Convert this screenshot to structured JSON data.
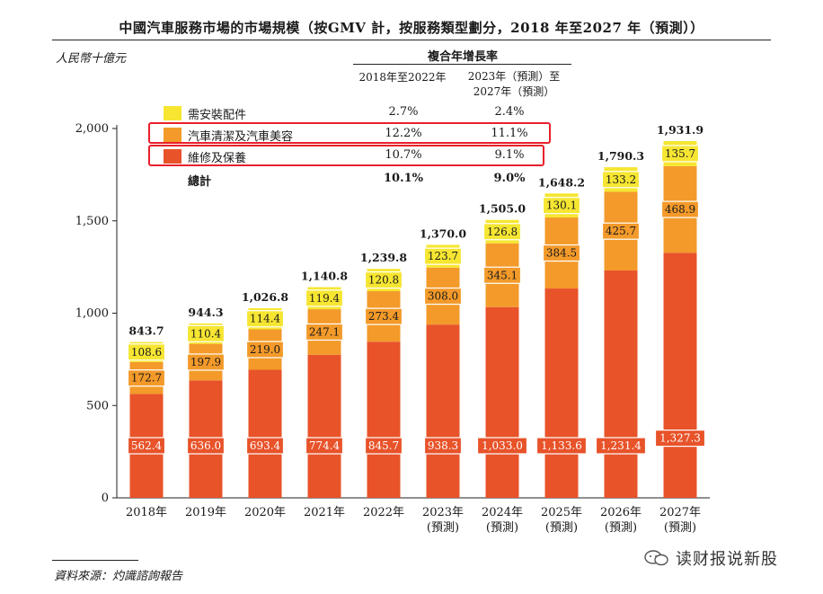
{
  "chart_data": {
    "type": "bar",
    "stacked": true,
    "title": "中國汽車服務市場的市場規模（按GMV 計，按服務類型劃分，2018 年至2027 年（預測））",
    "ylabel": "人民幣十億元",
    "ylim": [
      0,
      2000
    ],
    "yticks": [
      "0",
      "500",
      "1,000",
      "1,500",
      "2,000"
    ],
    "categories": [
      "2018年",
      "2019年",
      "2020年",
      "2021年",
      "2022年",
      "2023年\n(預測)",
      "2024年\n(預測)",
      "2025年\n(預測)",
      "2026年\n(預測)",
      "2027年\n(預測)"
    ],
    "category_labels": [
      {
        "line1": "2018年",
        "line2": ""
      },
      {
        "line1": "2019年",
        "line2": ""
      },
      {
        "line1": "2020年",
        "line2": ""
      },
      {
        "line1": "2021年",
        "line2": ""
      },
      {
        "line1": "2022年",
        "line2": ""
      },
      {
        "line1": "2023年",
        "line2": "(預測)"
      },
      {
        "line1": "2024年",
        "line2": "(預測)"
      },
      {
        "line1": "2025年",
        "line2": "(預測)"
      },
      {
        "line1": "2026年",
        "line2": "(預測)"
      },
      {
        "line1": "2027年",
        "line2": "(預測)"
      }
    ],
    "series": [
      {
        "name": "維修及保養",
        "color": "#e8532a",
        "label_bg": "#e8532a",
        "label_color": "#ffffff",
        "values": [
          562.4,
          636.0,
          693.4,
          774.4,
          845.7,
          938.3,
          1033.0,
          1133.6,
          1231.4,
          1327.3
        ],
        "labels": [
          "562.4",
          "636.0",
          "693.4",
          "774.4",
          "845.7",
          "938.3",
          "1,033.0",
          "1,133.6",
          "1,231.4",
          "1,327.3"
        ]
      },
      {
        "name": "汽車清潔及汽車美容",
        "color": "#f39a2a",
        "label_bg": "#f39a2a",
        "label_color": "#1a1a1a",
        "values": [
          172.7,
          197.9,
          219.0,
          247.1,
          273.4,
          308.0,
          345.1,
          384.5,
          425.7,
          468.9
        ],
        "labels": [
          "172.7",
          "197.9",
          "219.0",
          "247.1",
          "273.4",
          "308.0",
          "345.1",
          "384.5",
          "425.7",
          "468.9"
        ]
      },
      {
        "name": "需安裝配件",
        "color": "#f6e632",
        "label_bg": "#f6e632",
        "label_color": "#1a1a1a",
        "values": [
          108.6,
          110.4,
          114.4,
          119.4,
          120.8,
          123.7,
          126.8,
          130.1,
          133.2,
          135.7
        ],
        "labels": [
          "108.6",
          "110.4",
          "114.4",
          "119.4",
          "120.8",
          "123.7",
          "126.8",
          "130.1",
          "133.2",
          "135.7"
        ]
      }
    ],
    "totals": [
      843.7,
      944.3,
      1026.8,
      1140.8,
      1239.8,
      1370.0,
      1505.0,
      1648.2,
      1790.3,
      1931.9
    ],
    "total_labels": [
      "843.7",
      "944.3",
      "1,026.8",
      "1,140.8",
      "1,239.8",
      "1,370.0",
      "1,505.0",
      "1,648.2",
      "1,790.3",
      "1,931.9"
    ]
  },
  "cagr_table": {
    "heading": "複合年增長率",
    "col1": "2018年至2022年",
    "col2_line1": "2023年（預測）至",
    "col2_line2": "2027年（預測）",
    "rows": [
      {
        "label": "需安裝配件",
        "v1": "2.7%",
        "v2": "2.4%",
        "color": "#f6e632"
      },
      {
        "label": "汽車清潔及汽車美容",
        "v1": "12.2%",
        "v2": "11.1%",
        "color": "#f39a2a"
      },
      {
        "label": "維修及保養",
        "v1": "10.7%",
        "v2": "9.1%",
        "color": "#e8532a"
      }
    ],
    "total": {
      "label": "總計",
      "v1": "10.1%",
      "v2": "9.0%"
    }
  },
  "highlight_color": "#e8202a",
  "source": "資料來源：灼識諮詢報告",
  "watermark": "读财报说新股"
}
